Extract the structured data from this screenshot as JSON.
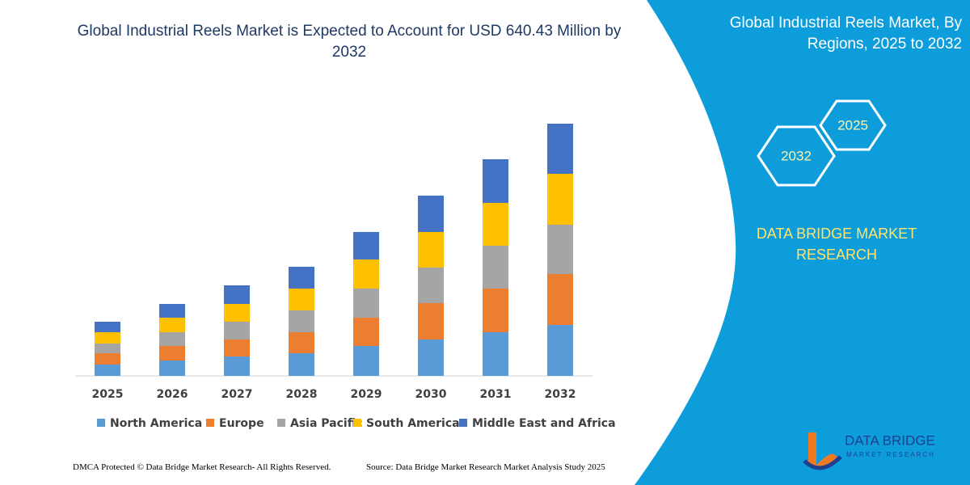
{
  "chart_data": {
    "type": "stacked_bar",
    "title": "Global Industrial Reels Market is Expected to Account for USD 640.43 Million by 2032",
    "categories": [
      "2025",
      "2026",
      "2027",
      "2028",
      "2029",
      "2030",
      "2031",
      "2032"
    ],
    "series": [
      {
        "name": "North America",
        "color": "#5b9bd5",
        "values": [
          14,
          19,
          24,
          28,
          37,
          45,
          54,
          63
        ]
      },
      {
        "name": "Europe",
        "color": "#ed7d31",
        "values": [
          14,
          18,
          21,
          26,
          35,
          45,
          54,
          63
        ]
      },
      {
        "name": "Asia Pacific",
        "color": "#a5a5a5",
        "values": [
          12,
          17,
          22,
          27,
          36,
          44,
          53,
          61
        ]
      },
      {
        "name": "South America",
        "color": "#ffc000",
        "values": [
          14,
          18,
          22,
          27,
          36,
          44,
          53,
          63
        ]
      },
      {
        "name": "Middle East and Africa",
        "color": "#4472c4",
        "values": [
          13,
          17,
          23,
          27,
          34,
          45,
          54,
          62
        ]
      }
    ],
    "ylim": [
      0,
      320
    ],
    "grid": false,
    "legend": "bottom"
  },
  "sidebar": {
    "title": "Global Industrial Reels Market, By Regions, 2025 to 2032",
    "hexagons": [
      "2025",
      "2032"
    ],
    "brand": "DATA BRIDGE MARKET RESEARCH",
    "logo": {
      "name": "DATA BRIDGE",
      "tagline": "MARKET RESEARCH"
    }
  },
  "footer": {
    "left": "DMCA Protected © Data Bridge Market Research-  All Rights Reserved.",
    "right": "Source: Data Bridge Market Research  Market Analysis Study 2025"
  }
}
